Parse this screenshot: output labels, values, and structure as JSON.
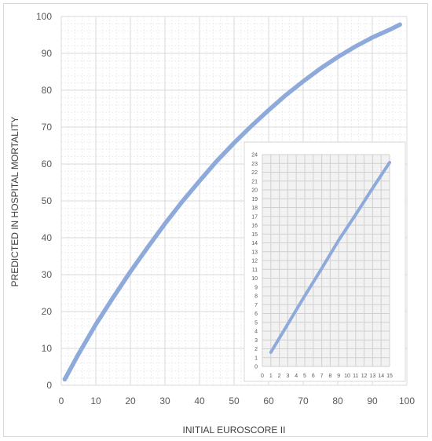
{
  "chart_data": [
    {
      "type": "line",
      "title": "",
      "xlabel": "INITIAL EUROSCORE II",
      "ylabel": "PREDICTED IN HOSPITAL MORTALITY",
      "xlim": [
        0,
        100
      ],
      "ylim": [
        0,
        100
      ],
      "x_ticks": [
        "0",
        "10",
        "20",
        "30",
        "40",
        "50",
        "60",
        "70",
        "80",
        "90",
        "100"
      ],
      "y_ticks": [
        "0",
        "10",
        "20",
        "30",
        "40",
        "50",
        "60",
        "70",
        "80",
        "90",
        "100"
      ],
      "grid": "major and minor",
      "series": [
        {
          "color": "#8eaadb",
          "x": [
            1,
            5,
            10,
            15,
            20,
            25,
            30,
            35,
            40,
            45,
            50,
            55,
            60,
            65,
            70,
            75,
            80,
            85,
            90,
            95,
            98
          ],
          "y": [
            1.6,
            8.5,
            16.5,
            23.8,
            30.8,
            37.4,
            43.8,
            49.8,
            55.4,
            60.8,
            65.7,
            70.3,
            74.6,
            78.7,
            82.4,
            85.9,
            89.0,
            91.8,
            94.3,
            96.4,
            97.8
          ]
        }
      ]
    },
    {
      "type": "line",
      "title": "",
      "xlabel": "",
      "ylabel": "",
      "xlim": [
        0,
        15
      ],
      "ylim": [
        0,
        24
      ],
      "x_ticks": [
        "0",
        "1",
        "2",
        "3",
        "4",
        "5",
        "6",
        "7",
        "8",
        "9",
        "10",
        "11",
        "12",
        "13",
        "14",
        "15"
      ],
      "y_ticks": [
        "0",
        "1",
        "2",
        "3",
        "4",
        "5",
        "6",
        "7",
        "8",
        "9",
        "10",
        "11",
        "12",
        "13",
        "14",
        "15",
        "16",
        "17",
        "18",
        "19",
        "20",
        "21",
        "22",
        "23",
        "24"
      ],
      "grid": "major",
      "series": [
        {
          "color": "#8eaadb",
          "x": [
            1,
            3,
            5,
            7,
            9,
            11,
            13,
            15
          ],
          "y": [
            1.6,
            4.8,
            8.0,
            11.1,
            14.3,
            17.2,
            20.2,
            23.1
          ]
        }
      ]
    }
  ]
}
